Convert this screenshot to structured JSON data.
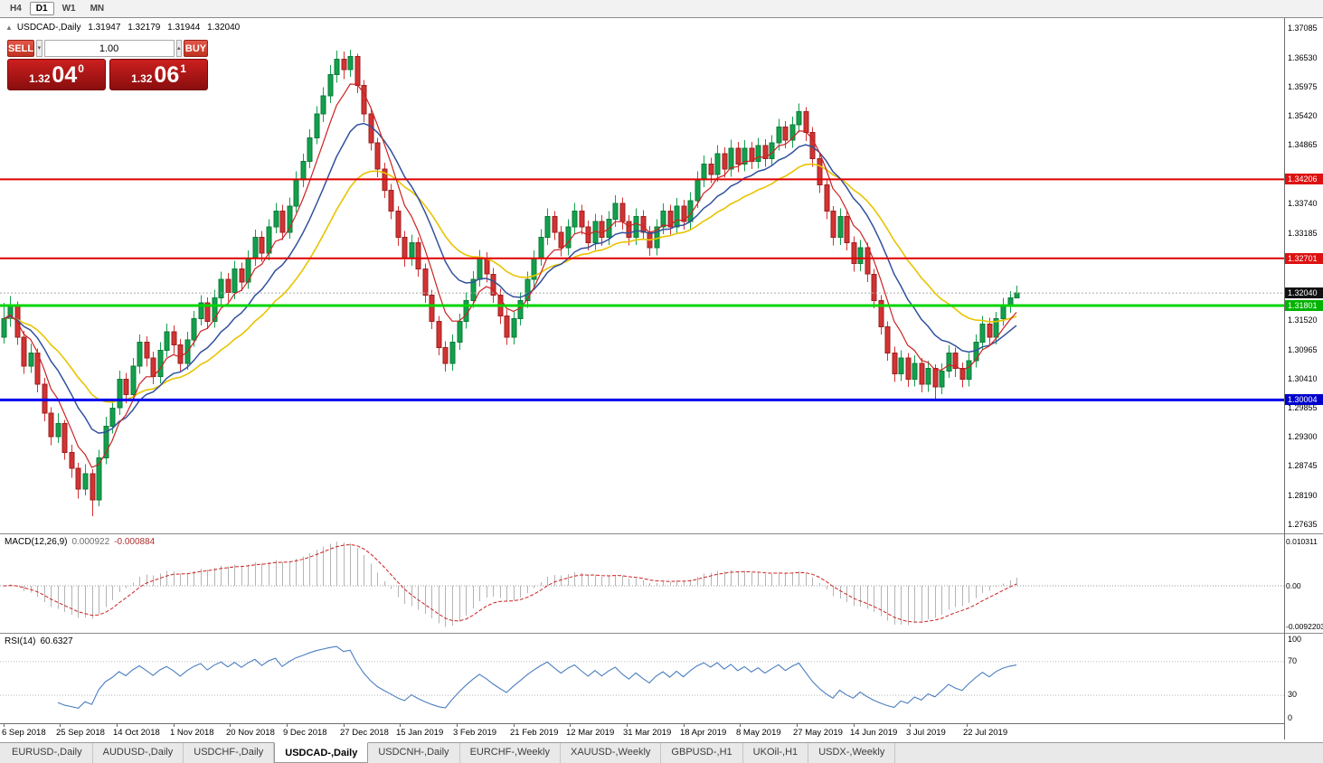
{
  "toolbar": {
    "timeframes": [
      {
        "label": "H4",
        "active": false
      },
      {
        "label": "D1",
        "active": true
      },
      {
        "label": "W1",
        "active": false
      },
      {
        "label": "MN",
        "active": false
      }
    ]
  },
  "chart_header": {
    "collapse_icon": "▲",
    "title": "USDCAD-,Daily",
    "open": "1.31947",
    "high": "1.32179",
    "low": "1.31944",
    "close": "1.32040"
  },
  "trade_panel": {
    "sell_label": "SELL",
    "buy_label": "BUY",
    "lot": "1.00",
    "spin_down_icon": "▾",
    "spin_up_icon": "▴",
    "bid_prefix": "1.32",
    "bid_pips": "04",
    "bid_frac": "0",
    "ask_prefix": "1.32",
    "ask_pips": "06",
    "ask_frac": "1"
  },
  "price_axis": {
    "ticks": [
      "1.37085",
      "1.36530",
      "1.35975",
      "1.35420",
      "1.34865",
      "1.33740",
      "1.33185",
      "1.31520",
      "1.30965",
      "1.30410",
      "1.29855",
      "1.29300",
      "1.28745",
      "1.28190",
      "1.27635"
    ],
    "markers": [
      {
        "label": "1.34206",
        "value": 1.34206,
        "bg": "#dd1111"
      },
      {
        "label": "1.32701",
        "value": 1.32701,
        "bg": "#dd1111"
      },
      {
        "label": "1.32040",
        "value": 1.3204,
        "bg": "#111111"
      },
      {
        "label": "1.31801",
        "value": 1.31801,
        "bg": "#00b300"
      },
      {
        "label": "1.30004",
        "value": 1.30004,
        "bg": "#0000cc"
      }
    ]
  },
  "macd_panel": {
    "label": "MACD(12,26,9)",
    "main_value": "0.000922",
    "signal_value": "-0.000884",
    "axis": [
      "0.010311",
      "0.00",
      "-0.0092203"
    ]
  },
  "rsi_panel": {
    "label": "RSI(14)",
    "value": "60.6327",
    "axis": [
      "100",
      "70",
      "30",
      "0"
    ]
  },
  "tabs": [
    {
      "label": "EURUSD-,Daily",
      "active": false
    },
    {
      "label": "AUDUSD-,Daily",
      "active": false
    },
    {
      "label": "USDCHF-,Daily",
      "active": false
    },
    {
      "label": "USDCAD-,Daily",
      "active": true
    },
    {
      "label": "USDCNH-,Daily",
      "active": false
    },
    {
      "label": "EURCHF-,Weekly",
      "active": false
    },
    {
      "label": "XAUUSD-,Weekly",
      "active": false
    },
    {
      "label": "GBPUSD-,H1",
      "active": false
    },
    {
      "label": "UKOil-,H1",
      "active": false
    },
    {
      "label": "USDX-,Weekly",
      "active": false
    }
  ],
  "chart_data": {
    "type": "candlestick",
    "title": "USDCAD-,Daily",
    "x_labels": [
      "6 Sep 2018",
      "25 Sep 2018",
      "14 Oct 2018",
      "1 Nov 2018",
      "20 Nov 2018",
      "9 Dec 2018",
      "27 Dec 2018",
      "15 Jan 2019",
      "3 Feb 2019",
      "21 Feb 2019",
      "12 Mar 2019",
      "31 Mar 2019",
      "18 Apr 2019",
      "8 May 2019",
      "27 May 2019",
      "14 Jun 2019",
      "3 Jul 2019",
      "22 Jul 2019"
    ],
    "y_range": [
      1.2746,
      1.3728
    ],
    "slots": 189,
    "current_price": 1.3204,
    "hlines": [
      {
        "value": 1.34206,
        "color": "#e00000",
        "width": 2
      },
      {
        "value": 1.32701,
        "color": "#e00000",
        "width": 2
      },
      {
        "value": 1.31801,
        "color": "#00d500",
        "width": 3
      },
      {
        "value": 1.30004,
        "color": "#0000ee",
        "width": 3
      }
    ],
    "moving_averages": [
      {
        "period": 24,
        "color": "#e8c400",
        "width": 1.6
      },
      {
        "period": 13,
        "color": "#31519e",
        "width": 1.5
      },
      {
        "period": 6,
        "color": "#cc2222",
        "width": 1.2
      }
    ],
    "macd": {
      "render_fast": 7,
      "render_slow": 15,
      "render_signal": 5,
      "bar_color": "#b4b4b4",
      "signal_color": "#cc2222"
    },
    "rsi": {
      "period": 8,
      "color": "#4a7ebf",
      "levels": [
        70,
        30
      ]
    },
    "colors": {
      "up": "#12a04c",
      "up_border": "#0c7a38",
      "down": "#d23333",
      "down_border": "#9c1f1f"
    },
    "candles": [
      [
        1.312,
        1.3185,
        1.3108,
        1.3155
      ],
      [
        1.3155,
        1.3198,
        1.314,
        1.318
      ],
      [
        1.318,
        1.3188,
        1.3105,
        1.312
      ],
      [
        1.312,
        1.3132,
        1.305,
        1.3065
      ],
      [
        1.3065,
        1.3108,
        1.3052,
        1.309
      ],
      [
        1.309,
        1.3098,
        1.3015,
        1.303
      ],
      [
        1.303,
        1.3042,
        1.296,
        1.2975
      ],
      [
        1.2975,
        1.2986,
        1.2914,
        1.293
      ],
      [
        1.293,
        1.2975,
        1.2918,
        1.2955
      ],
      [
        1.2955,
        1.2962,
        1.2886,
        1.29
      ],
      [
        1.29,
        1.2915,
        1.2852,
        1.287
      ],
      [
        1.287,
        1.288,
        1.2812,
        1.283
      ],
      [
        1.283,
        1.2878,
        1.2818,
        1.286
      ],
      [
        1.286,
        1.2868,
        1.2779,
        1.281
      ],
      [
        1.281,
        1.2905,
        1.2798,
        1.289
      ],
      [
        1.289,
        1.2968,
        1.2878,
        1.295
      ],
      [
        1.295,
        1.3002,
        1.2936,
        1.2985
      ],
      [
        1.2985,
        1.3056,
        1.2972,
        1.304
      ],
      [
        1.304,
        1.3052,
        1.2994,
        1.301
      ],
      [
        1.301,
        1.308,
        1.2998,
        1.3065
      ],
      [
        1.3065,
        1.3125,
        1.305,
        1.311
      ],
      [
        1.311,
        1.3122,
        1.3064,
        1.308
      ],
      [
        1.308,
        1.3092,
        1.303,
        1.3045
      ],
      [
        1.3045,
        1.311,
        1.3032,
        1.3095
      ],
      [
        1.3095,
        1.3146,
        1.3082,
        1.313
      ],
      [
        1.313,
        1.3142,
        1.3088,
        1.3105
      ],
      [
        1.3105,
        1.3116,
        1.3055,
        1.307
      ],
      [
        1.307,
        1.313,
        1.3058,
        1.3115
      ],
      [
        1.3115,
        1.317,
        1.3102,
        1.3155
      ],
      [
        1.3155,
        1.32,
        1.3142,
        1.3185
      ],
      [
        1.3185,
        1.3196,
        1.3135,
        1.315
      ],
      [
        1.315,
        1.321,
        1.3138,
        1.3195
      ],
      [
        1.3195,
        1.3245,
        1.3182,
        1.323
      ],
      [
        1.323,
        1.3242,
        1.3188,
        1.3205
      ],
      [
        1.3205,
        1.3265,
        1.3192,
        1.325
      ],
      [
        1.325,
        1.3262,
        1.3208,
        1.3225
      ],
      [
        1.3225,
        1.3285,
        1.3212,
        1.327
      ],
      [
        1.327,
        1.3325,
        1.3256,
        1.331
      ],
      [
        1.331,
        1.3322,
        1.3264,
        1.328
      ],
      [
        1.328,
        1.3345,
        1.3266,
        1.333
      ],
      [
        1.333,
        1.3376,
        1.3318,
        1.336
      ],
      [
        1.336,
        1.3372,
        1.3305,
        1.332
      ],
      [
        1.332,
        1.3386,
        1.3308,
        1.337
      ],
      [
        1.337,
        1.3436,
        1.3358,
        1.342
      ],
      [
        1.342,
        1.347,
        1.3406,
        1.3455
      ],
      [
        1.3455,
        1.3516,
        1.3442,
        1.35
      ],
      [
        1.35,
        1.356,
        1.3488,
        1.3545
      ],
      [
        1.3545,
        1.3596,
        1.353,
        1.358
      ],
      [
        1.358,
        1.3638,
        1.3566,
        1.362
      ],
      [
        1.362,
        1.3666,
        1.3605,
        1.365
      ],
      [
        1.365,
        1.3664,
        1.3612,
        1.363
      ],
      [
        1.363,
        1.3668,
        1.3616,
        1.3655
      ],
      [
        1.3655,
        1.366,
        1.3585,
        1.36
      ],
      [
        1.36,
        1.361,
        1.353,
        1.3545
      ],
      [
        1.3545,
        1.3556,
        1.3476,
        1.349
      ],
      [
        1.349,
        1.35,
        1.3425,
        1.344
      ],
      [
        1.344,
        1.3452,
        1.3385,
        1.34
      ],
      [
        1.34,
        1.3412,
        1.3345,
        1.336
      ],
      [
        1.336,
        1.337,
        1.3294,
        1.331
      ],
      [
        1.331,
        1.3322,
        1.3254,
        1.327
      ],
      [
        1.327,
        1.3315,
        1.3256,
        1.33
      ],
      [
        1.33,
        1.331,
        1.3235,
        1.325
      ],
      [
        1.325,
        1.326,
        1.3185,
        1.32
      ],
      [
        1.32,
        1.321,
        1.3135,
        1.315
      ],
      [
        1.315,
        1.316,
        1.3085,
        1.31
      ],
      [
        1.31,
        1.3112,
        1.3054,
        1.307
      ],
      [
        1.307,
        1.3125,
        1.3056,
        1.311
      ],
      [
        1.311,
        1.3165,
        1.3096,
        1.315
      ],
      [
        1.315,
        1.3205,
        1.3136,
        1.319
      ],
      [
        1.319,
        1.3246,
        1.3176,
        1.323
      ],
      [
        1.323,
        1.3286,
        1.3216,
        1.327
      ],
      [
        1.327,
        1.3282,
        1.3224,
        1.324
      ],
      [
        1.324,
        1.3252,
        1.3185,
        1.32
      ],
      [
        1.32,
        1.3212,
        1.3145,
        1.316
      ],
      [
        1.316,
        1.3172,
        1.3105,
        1.312
      ],
      [
        1.312,
        1.317,
        1.3106,
        1.3155
      ],
      [
        1.3155,
        1.3205,
        1.3142,
        1.319
      ],
      [
        1.319,
        1.3245,
        1.3176,
        1.323
      ],
      [
        1.323,
        1.3285,
        1.3216,
        1.327
      ],
      [
        1.327,
        1.3326,
        1.3256,
        1.331
      ],
      [
        1.331,
        1.3365,
        1.3296,
        1.335
      ],
      [
        1.335,
        1.336,
        1.3305,
        1.332
      ],
      [
        1.332,
        1.3332,
        1.3274,
        1.329
      ],
      [
        1.329,
        1.3345,
        1.3276,
        1.333
      ],
      [
        1.333,
        1.3376,
        1.3316,
        1.336
      ],
      [
        1.336,
        1.3372,
        1.3315,
        1.333
      ],
      [
        1.333,
        1.3342,
        1.3285,
        1.33
      ],
      [
        1.33,
        1.3355,
        1.3286,
        1.334
      ],
      [
        1.334,
        1.3352,
        1.3294,
        1.331
      ],
      [
        1.331,
        1.336,
        1.3296,
        1.3345
      ],
      [
        1.3345,
        1.339,
        1.333,
        1.3375
      ],
      [
        1.3375,
        1.3386,
        1.3325,
        1.334
      ],
      [
        1.334,
        1.3352,
        1.3295,
        1.331
      ],
      [
        1.331,
        1.3365,
        1.3296,
        1.335
      ],
      [
        1.335,
        1.3362,
        1.3305,
        1.332
      ],
      [
        1.332,
        1.3332,
        1.3275,
        1.329
      ],
      [
        1.329,
        1.3345,
        1.3276,
        1.333
      ],
      [
        1.333,
        1.3375,
        1.3316,
        1.336
      ],
      [
        1.336,
        1.3372,
        1.3315,
        1.333
      ],
      [
        1.333,
        1.3385,
        1.3316,
        1.337
      ],
      [
        1.337,
        1.3382,
        1.3325,
        1.334
      ],
      [
        1.334,
        1.3396,
        1.3326,
        1.338
      ],
      [
        1.338,
        1.3436,
        1.3366,
        1.342
      ],
      [
        1.342,
        1.3466,
        1.3406,
        1.345
      ],
      [
        1.345,
        1.3462,
        1.3414,
        1.343
      ],
      [
        1.343,
        1.3486,
        1.3416,
        1.347
      ],
      [
        1.347,
        1.3482,
        1.3424,
        1.344
      ],
      [
        1.344,
        1.3496,
        1.3426,
        1.348
      ],
      [
        1.348,
        1.3492,
        1.3434,
        1.345
      ],
      [
        1.345,
        1.3495,
        1.3436,
        1.348
      ],
      [
        1.348,
        1.3492,
        1.344,
        1.3455
      ],
      [
        1.3455,
        1.35,
        1.3441,
        1.3485
      ],
      [
        1.3485,
        1.3497,
        1.3445,
        1.346
      ],
      [
        1.346,
        1.3505,
        1.3446,
        1.349
      ],
      [
        1.349,
        1.3536,
        1.3476,
        1.352
      ],
      [
        1.352,
        1.3532,
        1.348,
        1.3495
      ],
      [
        1.3495,
        1.354,
        1.3481,
        1.3525
      ],
      [
        1.3525,
        1.3565,
        1.351,
        1.355
      ],
      [
        1.355,
        1.3558,
        1.3494,
        1.351
      ],
      [
        1.351,
        1.352,
        1.3445,
        1.346
      ],
      [
        1.346,
        1.347,
        1.3395,
        1.341
      ],
      [
        1.341,
        1.342,
        1.3345,
        1.336
      ],
      [
        1.336,
        1.337,
        1.3295,
        1.331
      ],
      [
        1.331,
        1.3365,
        1.3296,
        1.335
      ],
      [
        1.335,
        1.336,
        1.3285,
        1.33
      ],
      [
        1.33,
        1.3312,
        1.3245,
        1.326
      ],
      [
        1.326,
        1.3305,
        1.3246,
        1.329
      ],
      [
        1.329,
        1.33,
        1.3225,
        1.324
      ],
      [
        1.324,
        1.325,
        1.3175,
        1.319
      ],
      [
        1.319,
        1.32,
        1.3125,
        1.314
      ],
      [
        1.314,
        1.315,
        1.3075,
        1.309
      ],
      [
        1.309,
        1.3102,
        1.3035,
        1.305
      ],
      [
        1.305,
        1.3095,
        1.3036,
        1.308
      ],
      [
        1.308,
        1.309,
        1.3025,
        1.304
      ],
      [
        1.304,
        1.3085,
        1.3026,
        1.307
      ],
      [
        1.307,
        1.308,
        1.3015,
        1.303
      ],
      [
        1.303,
        1.3075,
        1.3016,
        1.306
      ],
      [
        1.306,
        1.3068,
        1.2999,
        1.3025
      ],
      [
        1.3025,
        1.307,
        1.3011,
        1.3055
      ],
      [
        1.3055,
        1.3104,
        1.3042,
        1.309
      ],
      [
        1.309,
        1.31,
        1.3044,
        1.306
      ],
      [
        1.306,
        1.3072,
        1.3024,
        1.304
      ],
      [
        1.304,
        1.309,
        1.3026,
        1.3075
      ],
      [
        1.3075,
        1.3125,
        1.3062,
        1.311
      ],
      [
        1.311,
        1.316,
        1.3096,
        1.3145
      ],
      [
        1.3145,
        1.3157,
        1.3105,
        1.312
      ],
      [
        1.312,
        1.3168,
        1.3106,
        1.3155
      ],
      [
        1.3155,
        1.3195,
        1.3141,
        1.318
      ],
      [
        1.318,
        1.3208,
        1.3166,
        1.3195
      ],
      [
        1.31947,
        1.32179,
        1.31944,
        1.3204
      ]
    ]
  }
}
